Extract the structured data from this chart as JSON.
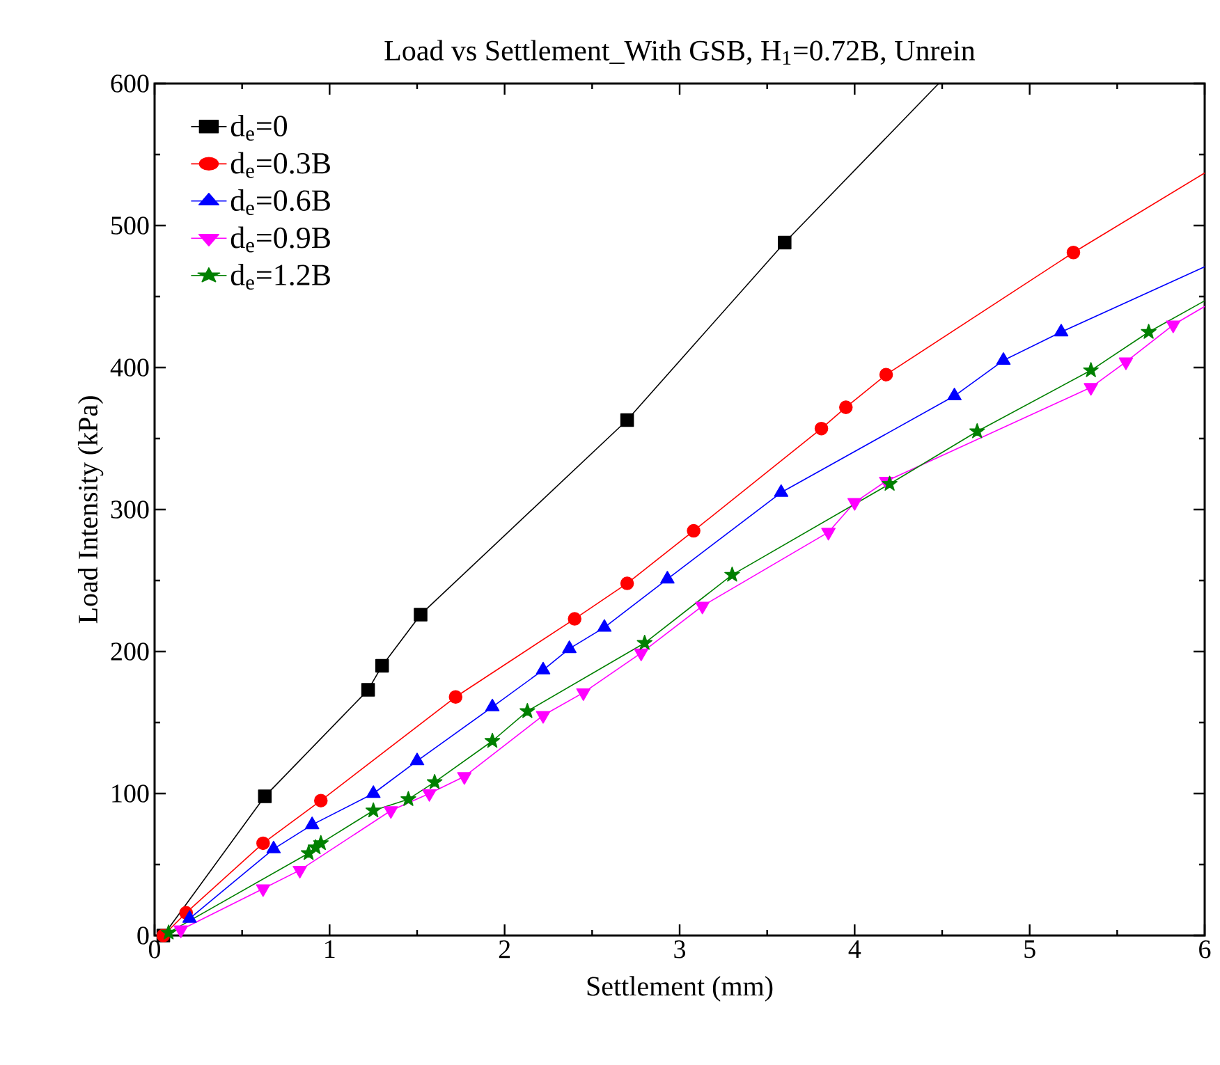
{
  "chart_data": {
    "type": "line",
    "title": "Load vs Settlement_With GSB, H$_{1}$=0.72B, Unrein",
    "xlabel": "Settlement (mm)",
    "ylabel": "Load Intensity (kPa)",
    "xlim": [
      0,
      6
    ],
    "xticks": [
      0,
      1,
      2,
      3,
      4,
      5,
      6
    ],
    "ylim": [
      0,
      600
    ],
    "yticks": [
      0,
      100,
      200,
      300,
      400,
      500,
      600
    ],
    "legend": "top left",
    "series": [
      {
        "name": "d$_{e}$=0",
        "color": "#000000",
        "marker": "square",
        "x": [
          0.05,
          0.63,
          1.22,
          1.3,
          1.52,
          2.7,
          3.6
        ],
        "values": [
          0,
          98,
          173,
          190,
          226,
          363,
          488
        ]
      },
      {
        "name": "d$_{e}$=0.3B",
        "color": "#ff0000",
        "marker": "circle",
        "x": [
          0.05,
          0.18,
          0.62,
          0.95,
          1.72,
          2.4,
          2.7,
          3.08,
          3.81,
          3.95,
          4.18,
          5.25
        ],
        "values": [
          0,
          16,
          65,
          95,
          168,
          223,
          248,
          285,
          357,
          372,
          395,
          481
        ]
      },
      {
        "name": "d$_{e}$=0.6B",
        "color": "#0000ff",
        "marker": "triangle",
        "x": [
          0.2,
          0.68,
          0.9,
          1.25,
          1.5,
          1.93,
          2.22,
          2.37,
          2.57,
          2.93,
          3.58,
          4.57,
          4.85,
          5.18
        ],
        "values": [
          12,
          61,
          78,
          100,
          123,
          161,
          187,
          202,
          217,
          251,
          312,
          380,
          405,
          425
        ]
      },
      {
        "name": "d$_{e}$=0.9B",
        "color": "#ff00ff",
        "marker": "triangle_down",
        "x": [
          0.15,
          0.62,
          0.83,
          1.35,
          1.57,
          1.77,
          2.22,
          2.45,
          2.78,
          3.13,
          3.85,
          4.0,
          4.18,
          5.35,
          5.55,
          5.82
        ],
        "values": [
          4,
          33,
          46,
          88,
          100,
          112,
          155,
          171,
          199,
          232,
          284,
          305,
          320,
          386,
          404,
          430
        ]
      },
      {
        "name": "d$_{e}$=1.2B",
        "color": "#008000",
        "marker": "star",
        "x": [
          0.08,
          0.88,
          0.92,
          0.95,
          1.25,
          1.45,
          1.6,
          1.93,
          2.13,
          2.8,
          3.3,
          4.2,
          4.7,
          5.35,
          5.68
        ],
        "values": [
          2,
          58,
          62,
          65,
          88,
          96,
          108,
          137,
          158,
          206,
          254,
          318,
          355,
          398,
          425
        ]
      },
      {
        "color": "#000000",
        "marker": "none",
        "x": [
          3.6,
          4.48
        ],
        "values": [
          488,
          600
        ]
      },
      {
        "color": "#ff0000",
        "marker": "none",
        "x": [
          5.25,
          6
        ],
        "values": [
          481,
          537
        ]
      },
      {
        "color": "#0000ff",
        "marker": "none",
        "x": [
          5.18,
          6
        ],
        "values": [
          425,
          471
        ]
      },
      {
        "color": "#ff00ff",
        "marker": "none",
        "x": [
          5.82,
          6
        ],
        "values": [
          430,
          443
        ]
      },
      {
        "color": "#008000",
        "marker": "none",
        "x": [
          5.68,
          6
        ],
        "values": [
          425,
          447
        ]
      }
    ]
  }
}
